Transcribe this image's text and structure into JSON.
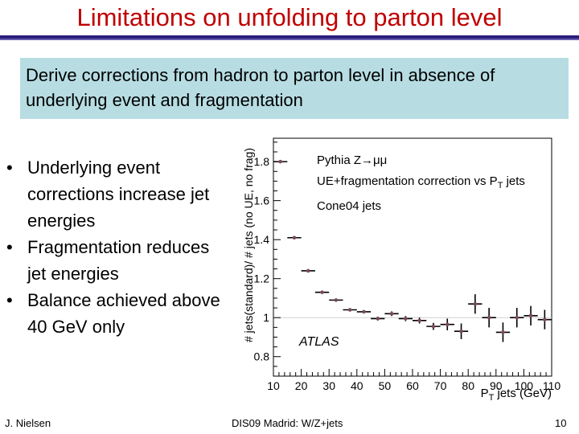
{
  "slide": {
    "title": "Limitations on unfolding to parton level",
    "highlight": "Derive corrections from hadron to parton level in absence of underlying event and fragmentation",
    "bullets": [
      "Underlying event corrections increase jet energies",
      "Fragmentation reduces jet energies",
      "Balance achieved above 40 GeV only"
    ],
    "bullet_glyph": "•",
    "footer": {
      "left": "J. Nielsen",
      "center": "DIS09 Madrid: W/Z+jets",
      "right": "10"
    }
  },
  "chart_data": {
    "type": "scatter",
    "ylabel": "# jets(standard)/ # jets (no UE, no frag)",
    "xlabel_main": "P",
    "xlabel_sub": "T",
    "xlabel_rest": " jets (GeV)",
    "xlim": [
      10,
      110
    ],
    "ylim": [
      0.7,
      1.92
    ],
    "xticks": [
      10,
      20,
      30,
      40,
      50,
      60,
      70,
      80,
      90,
      100,
      110
    ],
    "yticks": [
      0.8,
      1,
      1.2,
      1.4,
      1.6,
      1.8
    ],
    "ytick_labels": [
      "0.8",
      "1",
      "1.2",
      "1.4",
      "1.6",
      "1.8"
    ],
    "reference_line": 1.0,
    "legend_lines": [
      "Pythia Z→μμ",
      "UE+fragmentation correction vs P",
      "Cone04 jets"
    ],
    "legend_line2_sub": "T",
    "legend_line2_rest": " jets",
    "watermark": "ATLAS",
    "marker_color": "#7a4a55",
    "points": [
      {
        "x": 12.5,
        "y": 1.8,
        "xerr": 2.5,
        "yerr": 0.003
      },
      {
        "x": 17.5,
        "y": 1.41,
        "xerr": 2.5,
        "yerr": 0.003
      },
      {
        "x": 22.5,
        "y": 1.24,
        "xerr": 2.5,
        "yerr": 0.003
      },
      {
        "x": 27.5,
        "y": 1.13,
        "xerr": 2.5,
        "yerr": 0.004
      },
      {
        "x": 32.5,
        "y": 1.09,
        "xerr": 2.5,
        "yerr": 0.005
      },
      {
        "x": 37.5,
        "y": 1.04,
        "xerr": 2.5,
        "yerr": 0.006
      },
      {
        "x": 42.5,
        "y": 1.03,
        "xerr": 2.5,
        "yerr": 0.008
      },
      {
        "x": 47.5,
        "y": 0.995,
        "xerr": 2.5,
        "yerr": 0.01
      },
      {
        "x": 52.5,
        "y": 1.02,
        "xerr": 2.5,
        "yerr": 0.012
      },
      {
        "x": 57.5,
        "y": 0.995,
        "xerr": 2.5,
        "yerr": 0.013
      },
      {
        "x": 62.5,
        "y": 0.985,
        "xerr": 2.5,
        "yerr": 0.015
      },
      {
        "x": 67.5,
        "y": 0.955,
        "xerr": 2.5,
        "yerr": 0.018
      },
      {
        "x": 72.5,
        "y": 0.965,
        "xerr": 2.5,
        "yerr": 0.03
      },
      {
        "x": 77.5,
        "y": 0.93,
        "xerr": 2.5,
        "yerr": 0.04
      },
      {
        "x": 82.5,
        "y": 1.07,
        "xerr": 2.5,
        "yerr": 0.05
      },
      {
        "x": 87.5,
        "y": 1.0,
        "xerr": 2.5,
        "yerr": 0.05
      },
      {
        "x": 92.5,
        "y": 0.925,
        "xerr": 2.5,
        "yerr": 0.05
      },
      {
        "x": 97.5,
        "y": 1.0,
        "xerr": 2.5,
        "yerr": 0.05
      },
      {
        "x": 102.5,
        "y": 1.01,
        "xerr": 2.5,
        "yerr": 0.05
      },
      {
        "x": 107.5,
        "y": 0.99,
        "xerr": 2.5,
        "yerr": 0.05
      }
    ]
  }
}
